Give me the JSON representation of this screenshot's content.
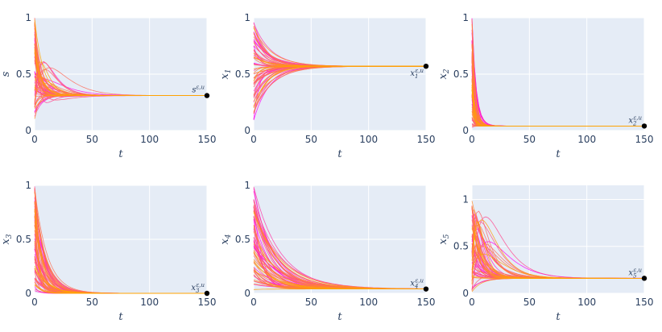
{
  "chart_data": [
    {
      "type": "line",
      "ylabel": "s",
      "xlabel": "t",
      "xlim": [
        0,
        150
      ],
      "ylim": [
        0,
        1
      ],
      "xticks": [
        "0",
        "50",
        "100",
        "150"
      ],
      "yticks": [
        "0",
        "0.5",
        "1"
      ],
      "ytick_values": [
        0,
        0.5,
        1
      ],
      "equilibrium": {
        "x": 150,
        "y": 0.31,
        "label_base": "s",
        "label_sub": "",
        "label_sup": "ε,u",
        "label_side": "left"
      },
      "bundle": {
        "n_traces": 64,
        "start_min": 0.1,
        "start_max": 1.0,
        "early_peak_max": 0.68,
        "settle_time": 30
      },
      "colors": {
        "early": "#ff00ff",
        "late": "#ffa500"
      }
    },
    {
      "type": "line",
      "ylabel": "x1",
      "xlabel": "t",
      "xlim": [
        0,
        150
      ],
      "ylim": [
        0,
        1
      ],
      "xticks": [
        "0",
        "50",
        "100",
        "150"
      ],
      "yticks": [
        "0",
        "0.5",
        "1"
      ],
      "ytick_values": [
        0,
        0.5,
        1
      ],
      "equilibrium": {
        "x": 150,
        "y": 0.57,
        "label_base": "x",
        "label_sub": "1",
        "label_sup": "ε,u",
        "label_side": "left-below"
      },
      "bundle": {
        "n_traces": 64,
        "start_min": 0.05,
        "start_max": 0.98,
        "settle_time": 70
      },
      "colors": {
        "early": "#ff00ff",
        "late": "#ffa500"
      }
    },
    {
      "type": "line",
      "ylabel": "x2",
      "xlabel": "t",
      "xlim": [
        0,
        150
      ],
      "ylim": [
        0,
        1
      ],
      "xticks": [
        "0",
        "50",
        "100",
        "150"
      ],
      "yticks": [
        "0",
        "0.5",
        "1"
      ],
      "ytick_values": [
        0,
        0.5,
        1
      ],
      "equilibrium": {
        "x": 150,
        "y": 0.04,
        "label_base": "x",
        "label_sub": "2",
        "label_sup": "ε,u",
        "label_side": "left"
      },
      "bundle": {
        "n_traces": 64,
        "start_min": 0.02,
        "start_max": 1.0,
        "settle_time": 15
      },
      "colors": {
        "early": "#ff00ff",
        "late": "#ffa500"
      }
    },
    {
      "type": "line",
      "ylabel": "x3",
      "xlabel": "t",
      "xlim": [
        0,
        150
      ],
      "ylim": [
        0,
        1
      ],
      "xticks": [
        "0",
        "50",
        "100",
        "150"
      ],
      "yticks": [
        "0",
        "0.5",
        "1"
      ],
      "ytick_values": [
        0,
        0.5,
        1
      ],
      "equilibrium": {
        "x": 150,
        "y": 0.0,
        "label_base": "x",
        "label_sub": "3",
        "label_sup": "ε,u",
        "label_side": "left"
      },
      "bundle": {
        "n_traces": 64,
        "start_min": 0.02,
        "start_max": 1.0,
        "settle_time": 45
      },
      "colors": {
        "early": "#ff00ff",
        "late": "#ffa500"
      }
    },
    {
      "type": "line",
      "ylabel": "x4",
      "xlabel": "t",
      "xlim": [
        0,
        150
      ],
      "ylim": [
        0,
        1
      ],
      "xticks": [
        "0",
        "50",
        "100",
        "150"
      ],
      "yticks": [
        "0",
        "0.5",
        "1"
      ],
      "ytick_values": [
        0,
        0.5,
        1
      ],
      "equilibrium": {
        "x": 150,
        "y": 0.04,
        "label_base": "x",
        "label_sub": "4",
        "label_sup": "ε,u",
        "label_side": "left"
      },
      "bundle": {
        "n_traces": 64,
        "start_min": 0.0,
        "start_max": 1.0,
        "settle_time": 110
      },
      "colors": {
        "early": "#ff00ff",
        "late": "#ffa500"
      }
    },
    {
      "type": "line",
      "ylabel": "x5",
      "xlabel": "t",
      "xlim": [
        0,
        150
      ],
      "ylim": [
        0,
        1.15
      ],
      "xticks": [
        "0",
        "50",
        "100",
        "150"
      ],
      "yticks": [
        "0",
        "0.5",
        "1"
      ],
      "ytick_values": [
        0,
        0.5,
        1
      ],
      "equilibrium": {
        "x": 150,
        "y": 0.16,
        "label_base": "x",
        "label_sub": "5",
        "label_sup": "ε,u",
        "label_side": "left"
      },
      "bundle": {
        "n_traces": 64,
        "start_min": 0.0,
        "start_max": 1.0,
        "early_peak_max": 1.12,
        "settle_time": 60
      },
      "colors": {
        "early": "#ff00ff",
        "late": "#ffa500"
      }
    }
  ],
  "style": {
    "plot_bg": "#e5ecf6",
    "grid": "#ffffff",
    "marker": "#000000",
    "text": "#2a3f5f"
  }
}
